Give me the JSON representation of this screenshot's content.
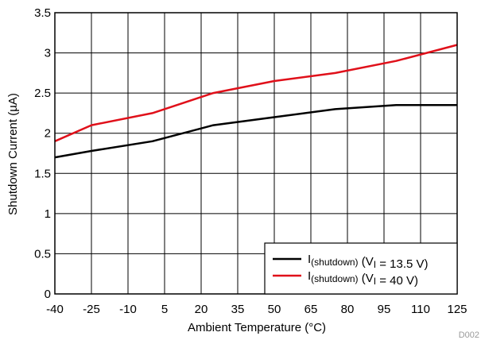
{
  "chart_data": {
    "type": "line",
    "xlabel": "Ambient Temperature (°C)",
    "ylabel": "Shutdown Current (µA)",
    "xlim": [
      -40,
      125
    ],
    "ylim": [
      0,
      3.5
    ],
    "x_ticks": [
      -40,
      -25,
      -10,
      5,
      20,
      35,
      50,
      65,
      80,
      95,
      110,
      125
    ],
    "y_ticks": [
      0,
      0.5,
      1,
      1.5,
      2,
      2.5,
      3,
      3.5
    ],
    "y_tick_labels": [
      "0",
      "0.5",
      "1",
      "1.5",
      "2",
      "2.5",
      "3",
      "3.5"
    ],
    "grid": true,
    "legend_position": "bottom-right",
    "figure_id": "D002",
    "series": [
      {
        "name": "I(shutdown) (VI = 13.5 V)",
        "legend_parts": {
          "main": "I",
          "main_sub": "(shutdown)",
          "mid": " (V",
          "mid_sub": "I",
          "tail": " = 13.5 V)"
        },
        "color": "#000000",
        "x": [
          -40,
          -25,
          0,
          25,
          50,
          75,
          100,
          125
        ],
        "y": [
          1.7,
          1.78,
          1.9,
          2.1,
          2.2,
          2.3,
          2.35,
          2.35
        ]
      },
      {
        "name": "I(shutdown) (VI = 40 V)",
        "legend_parts": {
          "main": "I",
          "main_sub": "(shutdown)",
          "mid": " (V",
          "mid_sub": "I",
          "tail": " = 40 V)"
        },
        "color": "#e0101a",
        "x": [
          -40,
          -25,
          0,
          25,
          50,
          75,
          100,
          125
        ],
        "y": [
          1.9,
          2.1,
          2.25,
          2.5,
          2.65,
          2.75,
          2.9,
          3.1
        ]
      }
    ]
  }
}
